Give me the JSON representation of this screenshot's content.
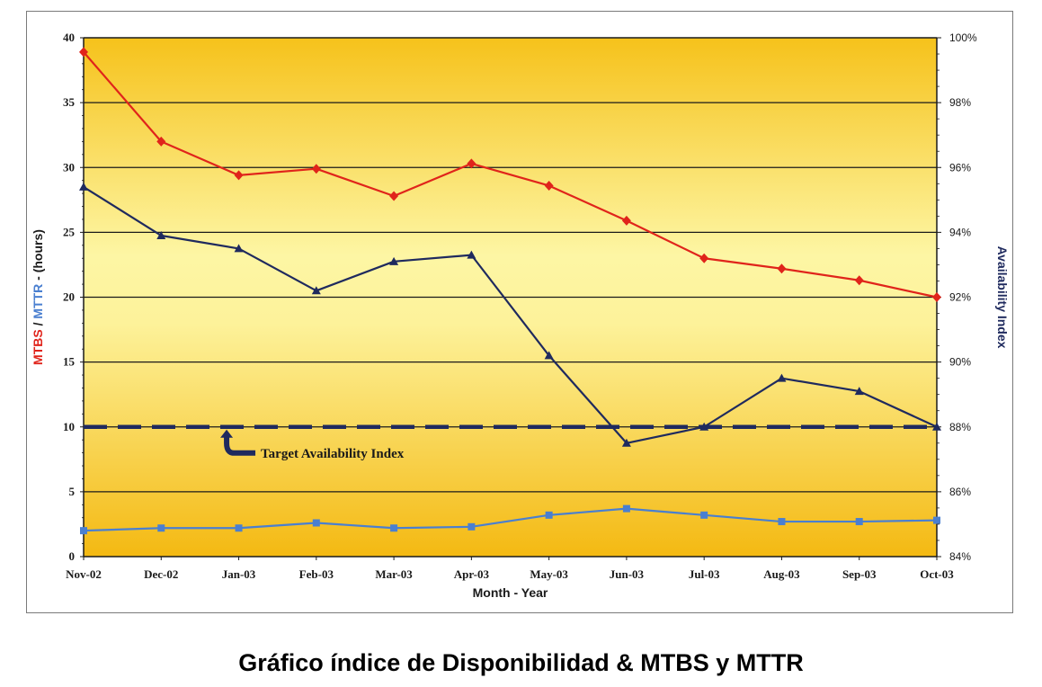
{
  "caption": "Gráfico índice de Disponibilidad & MTBS y MTTR",
  "chart_data": {
    "type": "line",
    "categories": [
      "Nov-02",
      "Dec-02",
      "Jan-03",
      "Feb-03",
      "Mar-03",
      "Apr-03",
      "May-03",
      "Jun-03",
      "Jul-03",
      "Aug-03",
      "Sep-03",
      "Oct-03"
    ],
    "xlabel": "Month - Year",
    "ylabel_left_parts": [
      {
        "text": "MTBS",
        "color": "#e0241b"
      },
      {
        "text": " / ",
        "color": "#1a1a1a"
      },
      {
        "text": "MTTR",
        "color": "#4a7fd0"
      },
      {
        "text": " - (hours)",
        "color": "#1a1a1a"
      }
    ],
    "ylabel_right": "Availability Index",
    "ylim_left": [
      0,
      40
    ],
    "yticks_left": [
      "0",
      "5",
      "10",
      "15",
      "20",
      "25",
      "30",
      "35",
      "40"
    ],
    "ylim_right": [
      84,
      100
    ],
    "yticks_right": [
      "84%",
      "86%",
      "88%",
      "90%",
      "92%",
      "94%",
      "96%",
      "98%",
      "100%"
    ],
    "grid": "horizontal",
    "series": [
      {
        "axis": "left",
        "color": "#e0241b",
        "marker": "diamond",
        "values": [
          38.9,
          32.0,
          29.4,
          29.9,
          27.8,
          30.3,
          28.6,
          25.9,
          23.0,
          22.2,
          21.3,
          20.0
        ]
      },
      {
        "axis": "right",
        "color": "#1f2a5e",
        "marker": "triangle",
        "values": [
          95.4,
          93.9,
          93.5,
          92.2,
          93.1,
          93.3,
          90.2,
          87.5,
          88.0,
          89.5,
          89.1,
          88.0
        ]
      },
      {
        "axis": "left",
        "color": "#4a7fd0",
        "marker": "square",
        "values": [
          2.0,
          2.2,
          2.2,
          2.6,
          2.2,
          2.3,
          3.2,
          3.7,
          3.2,
          2.7,
          2.7,
          2.8
        ]
      }
    ],
    "target": {
      "axis": "right",
      "value": 88,
      "label": "Target Availability Index"
    }
  }
}
